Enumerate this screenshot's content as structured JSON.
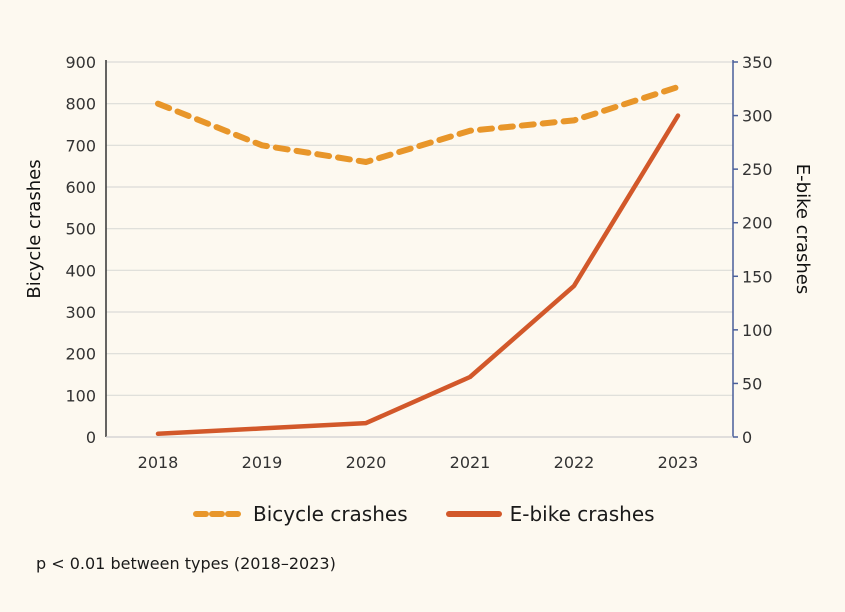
{
  "chart_data": {
    "type": "line",
    "categories": [
      "2018",
      "2019",
      "2020",
      "2021",
      "2022",
      "2023"
    ],
    "series": [
      {
        "name": "Bicycle crashes",
        "axis": "left",
        "values": [
          800,
          700,
          660,
          735,
          760,
          840
        ],
        "color": "#E8962A",
        "style": "dashed"
      },
      {
        "name": "E-bike crashes",
        "axis": "right",
        "values": [
          3,
          8,
          13,
          56,
          141,
          300
        ],
        "color": "#D2582A",
        "style": "solid"
      }
    ],
    "ylabel": "Bicycle crashes",
    "ylim": [
      0,
      900
    ],
    "yticks": [
      0,
      100,
      200,
      300,
      400,
      500,
      600,
      700,
      800,
      900
    ],
    "y2label": "E-bike crashes",
    "y2lim": [
      0,
      350
    ],
    "y2ticks": [
      0,
      50,
      100,
      150,
      200,
      250,
      300,
      350
    ],
    "grid": true,
    "legend": "bottom"
  },
  "legend": {
    "bicycle": "Bicycle crashes",
    "ebike": "E-bike crashes"
  },
  "note": "p < 0.01 between types (2018–2023)"
}
